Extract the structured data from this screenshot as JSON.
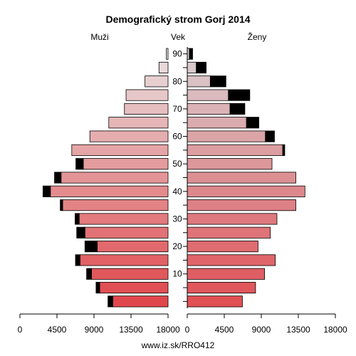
{
  "chart_data": {
    "type": "bar",
    "title": "Demografický strom Gorj 2014",
    "left_label": "Muži",
    "center_label": "Vek",
    "right_label": "Ženy",
    "source": "www.iz.sk/RRO412",
    "age_groups": [
      "0-4",
      "5-9",
      "10-14",
      "15-19",
      "20-24",
      "25-29",
      "30-34",
      "35-39",
      "40-44",
      "45-49",
      "50-54",
      "55-59",
      "60-64",
      "65-69",
      "70-74",
      "75-79",
      "80-84",
      "85-89",
      "90+"
    ],
    "age_tick_labels": [
      {
        "group": 2,
        "label": "10"
      },
      {
        "group": 4,
        "label": "20"
      },
      {
        "group": 6,
        "label": "30"
      },
      {
        "group": 8,
        "label": "40"
      },
      {
        "group": 10,
        "label": "50"
      },
      {
        "group": 12,
        "label": "60"
      },
      {
        "group": 14,
        "label": "70"
      },
      {
        "group": 16,
        "label": "80"
      },
      {
        "group": 18,
        "label": "90"
      }
    ],
    "series": [
      {
        "side": "left",
        "base": [
          6700,
          8300,
          9300,
          10700,
          8600,
          10100,
          10800,
          12800,
          14300,
          13000,
          10300,
          11700,
          9500,
          7200,
          5300,
          5100,
          2800,
          1100,
          200
        ],
        "excess": [
          600,
          450,
          600,
          550,
          1500,
          1000,
          500,
          300,
          900,
          800,
          900,
          0,
          0,
          0,
          0,
          0,
          0,
          0,
          0
        ]
      },
      {
        "side": "right",
        "base": [
          6700,
          8300,
          9400,
          10700,
          8600,
          10100,
          10900,
          13200,
          14300,
          13200,
          10300,
          11600,
          9500,
          7200,
          5200,
          5000,
          2800,
          1100,
          250
        ],
        "excess": [
          0,
          0,
          0,
          0,
          0,
          0,
          0,
          0,
          0,
          0,
          0,
          250,
          1100,
          1500,
          1800,
          2600,
          1900,
          1200,
          400
        ]
      }
    ],
    "xlim": [
      0,
      18000
    ],
    "x_ticks": [
      0,
      4500,
      9000,
      13500,
      18000
    ],
    "left_tick_labels": [
      "18000",
      "13500",
      "9000",
      "4500",
      "0"
    ],
    "right_tick_labels": [
      "0",
      "4500",
      "9000",
      "13500",
      "18000"
    ],
    "colors": {
      "young": "#e0474c",
      "old": "#e8e0e0",
      "excess": "#000000",
      "axis": "#000000"
    }
  }
}
